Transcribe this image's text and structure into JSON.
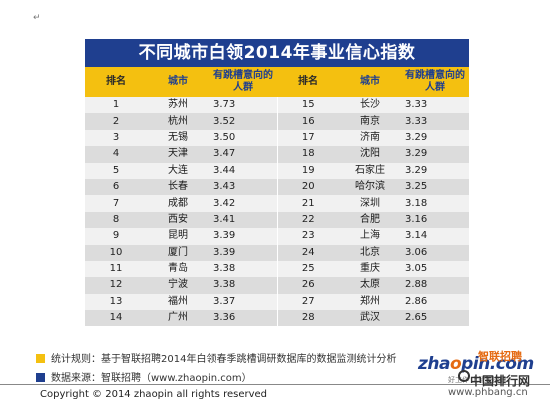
{
  "page": {
    "paragraph_mark": "↵",
    "title": "不同城市白领2014年事业信心指数"
  },
  "table": {
    "headers": [
      "排名",
      "城市",
      "有跳槽意向的人群",
      "排名",
      "城市",
      "有跳槽意向的人群"
    ],
    "rows": [
      {
        "rank": "1",
        "city": "苏州",
        "score": "3.73",
        "rank2": "15",
        "city2": "长沙",
        "score2": "3.33"
      },
      {
        "rank": "2",
        "city": "杭州",
        "score": "3.52",
        "rank2": "16",
        "city2": "南京",
        "score2": "3.33"
      },
      {
        "rank": "3",
        "city": "无锡",
        "score": "3.50",
        "rank2": "17",
        "city2": "济南",
        "score2": "3.29"
      },
      {
        "rank": "4",
        "city": "天津",
        "score": "3.47",
        "rank2": "18",
        "city2": "沈阳",
        "score2": "3.29"
      },
      {
        "rank": "5",
        "city": "大连",
        "score": "3.44",
        "rank2": "19",
        "city2": "石家庄",
        "score2": "3.29"
      },
      {
        "rank": "6",
        "city": "长春",
        "score": "3.43",
        "rank2": "20",
        "city2": "哈尔滨",
        "score2": "3.25"
      },
      {
        "rank": "7",
        "city": "成都",
        "score": "3.42",
        "rank2": "21",
        "city2": "深圳",
        "score2": "3.18"
      },
      {
        "rank": "8",
        "city": "西安",
        "score": "3.41",
        "rank2": "22",
        "city2": "合肥",
        "score2": "3.16"
      },
      {
        "rank": "9",
        "city": "昆明",
        "score": "3.39",
        "rank2": "23",
        "city2": "上海",
        "score2": "3.14"
      },
      {
        "rank": "10",
        "city": "厦门",
        "score": "3.39",
        "rank2": "24",
        "city2": "北京",
        "score2": "3.06"
      },
      {
        "rank": "11",
        "city": "青岛",
        "score": "3.38",
        "rank2": "25",
        "city2": "重庆",
        "score2": "3.05"
      },
      {
        "rank": "12",
        "city": "宁波",
        "score": "3.38",
        "rank2": "26",
        "city2": "太原",
        "score2": "2.88"
      },
      {
        "rank": "13",
        "city": "福州",
        "score": "3.37",
        "rank2": "27",
        "city2": "郑州",
        "score2": "2.86"
      },
      {
        "rank": "14",
        "city": "广州",
        "score": "3.36",
        "rank2": "28",
        "city2": "武汉",
        "score2": "2.65"
      }
    ]
  },
  "notes": {
    "method": "统计规则：基于智联招聘2014年白领春季跳槽调研数据库的数据监测统计分析",
    "source": "数据来源：智联招聘（www.zhaopin.com）"
  },
  "footer": {
    "copyright": "Copyright  ©  2014 zhaopin all rights reserved"
  },
  "logo": {
    "text_prefix": "zha",
    "text_o": "o",
    "text_suffix": "pin.com",
    "cn": "智联招聘",
    "slogan": "好工作 上智联招聘"
  },
  "watermark": {
    "cn": "中国排行网",
    "url": "www.phbang.cn"
  },
  "colors": {
    "title_bg": "#1f3f8f",
    "header_bg": "#f4c010",
    "row_odd": "#f1f1f1",
    "row_even": "#dcdcdc"
  }
}
